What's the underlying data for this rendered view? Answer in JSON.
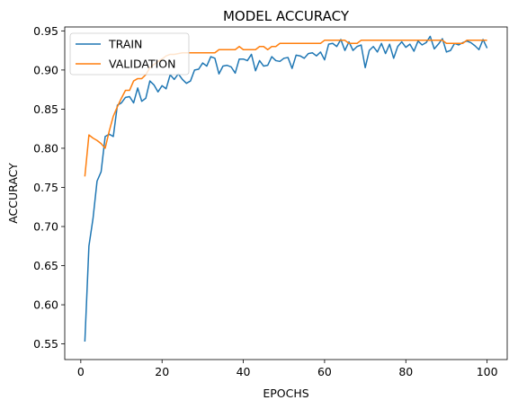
{
  "chart_data": {
    "type": "line",
    "title": "MODEL ACCURACY",
    "xlabel": "EPOCHS",
    "ylabel": "ACCURACY",
    "xlim": [
      -3.95,
      104.95
    ],
    "ylim": [
      0.53,
      0.955
    ],
    "xticks": [
      0,
      20,
      40,
      60,
      80,
      100
    ],
    "yticks": [
      0.55,
      0.6,
      0.65,
      0.7,
      0.75,
      0.8,
      0.85,
      0.9,
      0.95
    ],
    "ytick_labels": [
      "0.55",
      "0.60",
      "0.65",
      "0.70",
      "0.75",
      "0.80",
      "0.85",
      "0.90",
      "0.95"
    ],
    "grid": false,
    "legend_position": "top-left",
    "series": [
      {
        "name": "TRAIN",
        "color": "#1f77b4",
        "x": [
          1,
          2,
          3,
          4,
          5,
          6,
          7,
          8,
          9,
          10,
          11,
          12,
          13,
          14,
          15,
          16,
          17,
          18,
          19,
          20,
          21,
          22,
          23,
          24,
          25,
          26,
          27,
          28,
          29,
          30,
          31,
          32,
          33,
          34,
          35,
          36,
          37,
          38,
          39,
          40,
          41,
          42,
          43,
          44,
          45,
          46,
          47,
          48,
          49,
          50,
          51,
          52,
          53,
          54,
          55,
          56,
          57,
          58,
          59,
          60,
          61,
          62,
          63,
          64,
          65,
          66,
          67,
          68,
          69,
          70,
          71,
          72,
          73,
          74,
          75,
          76,
          77,
          78,
          79,
          80,
          81,
          82,
          83,
          84,
          85,
          86,
          87,
          88,
          89,
          90,
          91,
          92,
          93,
          94,
          95,
          96,
          97,
          98,
          99,
          100
        ],
        "values": [
          0.553,
          0.675,
          0.71,
          0.758,
          0.77,
          0.815,
          0.818,
          0.815,
          0.855,
          0.858,
          0.865,
          0.866,
          0.858,
          0.877,
          0.86,
          0.864,
          0.886,
          0.881,
          0.872,
          0.88,
          0.876,
          0.894,
          0.888,
          0.895,
          0.888,
          0.883,
          0.886,
          0.9,
          0.901,
          0.909,
          0.905,
          0.917,
          0.915,
          0.895,
          0.905,
          0.906,
          0.904,
          0.896,
          0.914,
          0.914,
          0.912,
          0.92,
          0.899,
          0.912,
          0.905,
          0.906,
          0.917,
          0.912,
          0.911,
          0.915,
          0.916,
          0.902,
          0.919,
          0.918,
          0.915,
          0.921,
          0.922,
          0.918,
          0.923,
          0.913,
          0.933,
          0.934,
          0.93,
          0.939,
          0.925,
          0.936,
          0.925,
          0.93,
          0.932,
          0.903,
          0.925,
          0.93,
          0.923,
          0.934,
          0.921,
          0.933,
          0.915,
          0.93,
          0.936,
          0.929,
          0.933,
          0.924,
          0.937,
          0.932,
          0.935,
          0.943,
          0.927,
          0.933,
          0.94,
          0.923,
          0.925,
          0.934,
          0.932,
          0.935,
          0.937,
          0.935,
          0.931,
          0.926,
          0.939,
          0.928
        ]
      },
      {
        "name": "VALIDATION",
        "color": "#ff7f0e",
        "x": [
          1,
          2,
          3,
          4,
          5,
          6,
          7,
          8,
          9,
          10,
          11,
          12,
          13,
          14,
          15,
          16,
          17,
          18,
          19,
          20,
          21,
          22,
          23,
          24,
          25,
          26,
          27,
          28,
          29,
          30,
          31,
          32,
          33,
          34,
          35,
          36,
          37,
          38,
          39,
          40,
          41,
          42,
          43,
          44,
          45,
          46,
          47,
          48,
          49,
          50,
          51,
          52,
          53,
          54,
          55,
          56,
          57,
          58,
          59,
          60,
          61,
          62,
          63,
          64,
          65,
          66,
          67,
          68,
          69,
          70,
          71,
          72,
          73,
          74,
          75,
          76,
          77,
          78,
          79,
          80,
          81,
          82,
          83,
          84,
          85,
          86,
          87,
          88,
          89,
          90,
          91,
          92,
          93,
          94,
          95,
          96,
          97,
          98,
          99,
          100
        ],
        "values": [
          0.764,
          0.817,
          0.813,
          0.81,
          0.806,
          0.8,
          0.822,
          0.841,
          0.853,
          0.864,
          0.874,
          0.874,
          0.886,
          0.889,
          0.889,
          0.894,
          0.903,
          0.907,
          0.911,
          0.914,
          0.918,
          0.92,
          0.92,
          0.921,
          0.922,
          0.922,
          0.922,
          0.922,
          0.922,
          0.922,
          0.922,
          0.922,
          0.922,
          0.926,
          0.926,
          0.926,
          0.926,
          0.926,
          0.93,
          0.926,
          0.926,
          0.926,
          0.926,
          0.93,
          0.93,
          0.926,
          0.93,
          0.93,
          0.934,
          0.934,
          0.934,
          0.934,
          0.934,
          0.934,
          0.934,
          0.934,
          0.934,
          0.934,
          0.934,
          0.938,
          0.938,
          0.938,
          0.938,
          0.938,
          0.938,
          0.934,
          0.934,
          0.934,
          0.938,
          0.938,
          0.938,
          0.938,
          0.938,
          0.938,
          0.938,
          0.938,
          0.938,
          0.938,
          0.938,
          0.938,
          0.938,
          0.938,
          0.938,
          0.938,
          0.938,
          0.938,
          0.938,
          0.938,
          0.938,
          0.934,
          0.934,
          0.934,
          0.934,
          0.934,
          0.938,
          0.938,
          0.938,
          0.938,
          0.938,
          0.938
        ]
      }
    ]
  }
}
